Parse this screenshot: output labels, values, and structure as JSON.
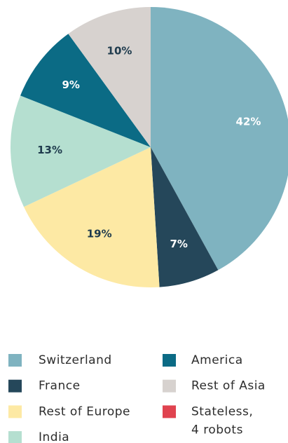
{
  "chart_data": {
    "type": "pie",
    "categories": [
      "Switzerland",
      "France",
      "Rest of Europe",
      "India",
      "America",
      "Rest of Asia",
      "Stateless,\n4 robots"
    ],
    "values": [
      42,
      7,
      19,
      13,
      9,
      10,
      null
    ],
    "value_labels": [
      "42%",
      "7%",
      "19%",
      "13%",
      "9%",
      "10%",
      null
    ],
    "colors": [
      "#7fb3c0",
      "#25475a",
      "#fde9a4",
      "#b5dfd0",
      "#0b6b85",
      "#d7d2cf",
      "#e0434f"
    ]
  }
}
